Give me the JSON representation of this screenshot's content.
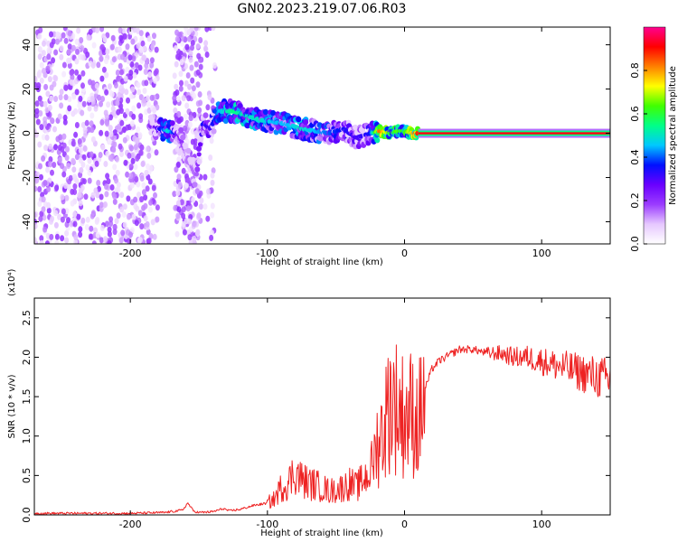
{
  "figure_title": "GN02.2023.219.07.06.R03",
  "chart_data": [
    {
      "type": "heatmap",
      "title": "",
      "xlabel": "Height of straight line (km)",
      "ylabel": "Frequency (Hz)",
      "xlim": [
        -270,
        150
      ],
      "ylim": [
        -50,
        48
      ],
      "xticks": [
        -200,
        -100,
        0,
        100
      ],
      "xtick_labels": [
        "-200",
        "-100",
        "0",
        "100"
      ],
      "yticks": [
        -40,
        -20,
        0,
        20,
        40
      ],
      "ytick_labels": [
        "-40",
        "-20",
        "0",
        "20",
        "40"
      ],
      "colorbar": {
        "label": "Normalized spectral amplitude",
        "range": [
          0,
          1
        ],
        "ticks": [
          0,
          0.2,
          0.4,
          0.6,
          0.8
        ],
        "tick_labels": [
          "0.0",
          "0.2",
          "0.4",
          "0.6",
          "0.8"
        ],
        "colormap": [
          "#ffffff",
          "#e6c8ff",
          "#9b3cff",
          "#6a00ff",
          "#0010ff",
          "#00c8ff",
          "#00ff88",
          "#40ff00",
          "#ffff00",
          "#ff8000",
          "#ff0000",
          "#ff0090"
        ]
      },
      "ridge": {
        "x": [
          -185,
          -178,
          -172,
          -165,
          -160,
          -152,
          -147,
          -142,
          -135,
          -125,
          -115,
          -105,
          -95,
          -85,
          -75,
          -65,
          -55,
          -45,
          -35,
          -25,
          -18,
          -10,
          -5,
          0,
          5,
          10,
          150
        ],
        "frequency": [
          3,
          2,
          1,
          0,
          -8,
          -20,
          5,
          2,
          10,
          10,
          8,
          6,
          5,
          4,
          2,
          1,
          0,
          2,
          -2,
          0,
          1,
          0,
          1,
          1,
          0,
          0,
          0
        ],
        "amplitude": [
          0.2,
          0.35,
          0.5,
          0.25,
          0.15,
          0.15,
          0.35,
          0.3,
          0.45,
          0.55,
          0.5,
          0.5,
          0.45,
          0.45,
          0.5,
          0.45,
          0.4,
          0.35,
          0.3,
          0.35,
          0.85,
          0.6,
          0.65,
          0.6,
          0.75,
          0.9,
          0.9
        ]
      },
      "grid": false
    },
    {
      "type": "line",
      "title": "",
      "xlabel": "Height of straight line (km)",
      "ylabel": "SNR (10 * v/v)",
      "yscale_label": "(x10⁴)",
      "xlim": [
        -270,
        150
      ],
      "ylim": [
        0,
        2.75
      ],
      "xticks": [
        -200,
        -100,
        0,
        100
      ],
      "xtick_labels": [
        "-200",
        "-100",
        "0",
        "100"
      ],
      "yticks": [
        0,
        0.5,
        1.0,
        1.5,
        2.0,
        2.5
      ],
      "ytick_labels": [
        "0.0",
        "0.5",
        "1.0",
        "1.5",
        "2.0",
        "2.5"
      ],
      "color": "#ee2222",
      "series": [
        {
          "x": [
            -270,
            -240,
            -200,
            -175,
            -162,
            -158,
            -154,
            -150,
            -140,
            -132,
            -128,
            -120,
            -110,
            -100,
            -95,
            -90,
            -85,
            -80,
            -75,
            -70,
            -65,
            -60,
            -55,
            -50,
            -45,
            -40,
            -35,
            -30,
            -25,
            -20,
            -15,
            -10,
            -5,
            0,
            5,
            10,
            15,
            20,
            25,
            30,
            40,
            50,
            60,
            70,
            80,
            90,
            100,
            110,
            120,
            130,
            140,
            150
          ],
          "y": [
            0.02,
            0.02,
            0.02,
            0.03,
            0.06,
            0.15,
            0.05,
            0.03,
            0.04,
            0.08,
            0.05,
            0.07,
            0.12,
            0.15,
            0.2,
            0.35,
            0.4,
            0.55,
            0.45,
            0.4,
            0.38,
            0.35,
            0.3,
            0.32,
            0.35,
            0.4,
            0.35,
            0.45,
            0.55,
            0.9,
            1.1,
            1.5,
            1.35,
            1.25,
            1.3,
            1.15,
            1.6,
            1.85,
            1.95,
            2.0,
            2.1,
            2.1,
            2.05,
            2.05,
            2.0,
            2.0,
            1.95,
            1.9,
            1.85,
            1.8,
            1.75,
            1.7
          ]
        }
      ],
      "grid": false
    }
  ]
}
